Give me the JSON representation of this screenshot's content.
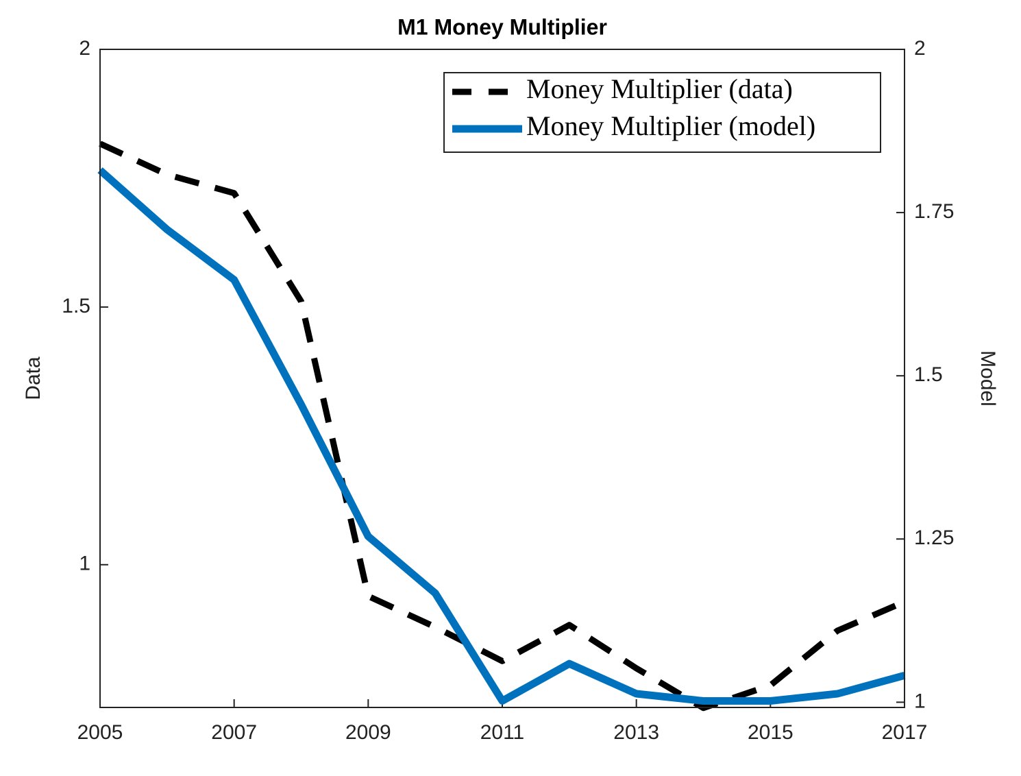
{
  "chart_data": {
    "type": "line",
    "title": "M1 Money Multiplier",
    "y_label": "Data",
    "y2_label": "Model",
    "x": [
      2005,
      2006,
      2007,
      2008,
      2009,
      2010,
      2011,
      2012,
      2013,
      2014,
      2015,
      2016,
      2017
    ],
    "xlim": [
      2005,
      2017
    ],
    "xticks": [
      2005,
      2007,
      2009,
      2011,
      2013,
      2015,
      2017
    ],
    "ylim": [
      0.723,
      2
    ],
    "yticks": [
      1,
      1.5,
      2
    ],
    "y2lim": [
      0.992,
      2
    ],
    "y2ticks": [
      1,
      1.25,
      1.5,
      1.75,
      2
    ],
    "legend": "upper right",
    "series": [
      {
        "name": "Money Multiplier (data)",
        "color": "#000000",
        "dashed": true,
        "values": [
          1.817,
          1.757,
          1.721,
          1.511,
          0.939,
          0.879,
          0.813,
          0.883,
          0.799,
          0.722,
          0.766,
          0.872,
          0.928
        ]
      },
      {
        "name": "Money Multiplier (model)",
        "color": "#0072bd",
        "axis": "y2",
        "values": [
          1.815,
          1.724,
          1.647,
          1.456,
          1.254,
          1.167,
          1.002,
          1.059,
          1.013,
          1.002,
          1.002,
          1.013,
          1.041
        ]
      }
    ]
  }
}
